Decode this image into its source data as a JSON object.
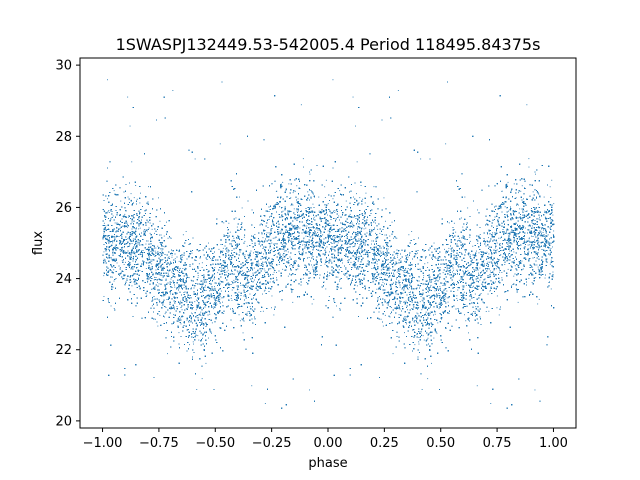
{
  "chart_data": {
    "type": "scatter",
    "title": "1SWASPJ132449.53-542005.4 Period 118495.84375s",
    "xlabel": "phase",
    "ylabel": "flux",
    "xlim": [
      -1.1,
      1.1
    ],
    "ylim": [
      19.8,
      30.2
    ],
    "xticks": [
      -1.0,
      -0.75,
      -0.5,
      -0.25,
      0.0,
      0.25,
      0.5,
      0.75,
      1.0
    ],
    "xtick_labels": [
      "−1.00",
      "−0.75",
      "−0.50",
      "−0.25",
      "0.00",
      "0.25",
      "0.50",
      "0.75",
      "1.00"
    ],
    "yticks": [
      20,
      22,
      24,
      26,
      28,
      30
    ],
    "ytick_labels": [
      "20",
      "22",
      "24",
      "26",
      "28",
      "30"
    ],
    "grid": false,
    "legend": "none",
    "marker_color": "#1f77b4",
    "light_curve_profile": {
      "phase": [
        0.0,
        0.1,
        0.2,
        0.25,
        0.3,
        0.35,
        0.4,
        0.45,
        0.5,
        0.55,
        0.6,
        0.65,
        0.7,
        0.75,
        0.8,
        0.9,
        1.0
      ],
      "median_flux": [
        25.1,
        25.0,
        24.8,
        24.2,
        23.9,
        23.6,
        23.3,
        23.4,
        23.8,
        24.2,
        24.3,
        24.0,
        24.6,
        25.0,
        25.2,
        25.2,
        25.1
      ],
      "scatter_sigma": 0.75,
      "point_count": 26000
    },
    "series": [
      {
        "points_sample": [
          [
            0.05,
            25.2
          ],
          [
            0.15,
            24.9
          ],
          [
            0.28,
            24.0
          ],
          [
            0.33,
            23.6
          ],
          [
            0.4,
            23.2
          ],
          [
            0.47,
            23.5
          ],
          [
            0.55,
            24.2
          ],
          [
            0.62,
            24.1
          ],
          [
            0.68,
            24.4
          ],
          [
            0.8,
            25.1
          ],
          [
            0.92,
            25.3
          ],
          [
            0.98,
            25.0
          ],
          [
            0.02,
            29.6
          ],
          [
            0.31,
            29.3
          ],
          [
            0.44,
            21.2
          ],
          [
            0.66,
            21.0
          ],
          [
            0.88,
            28.9
          ],
          [
            0.52,
            27.8
          ],
          [
            0.12,
            28.3
          ],
          [
            0.72,
            20.5
          ]
        ]
      }
    ]
  }
}
